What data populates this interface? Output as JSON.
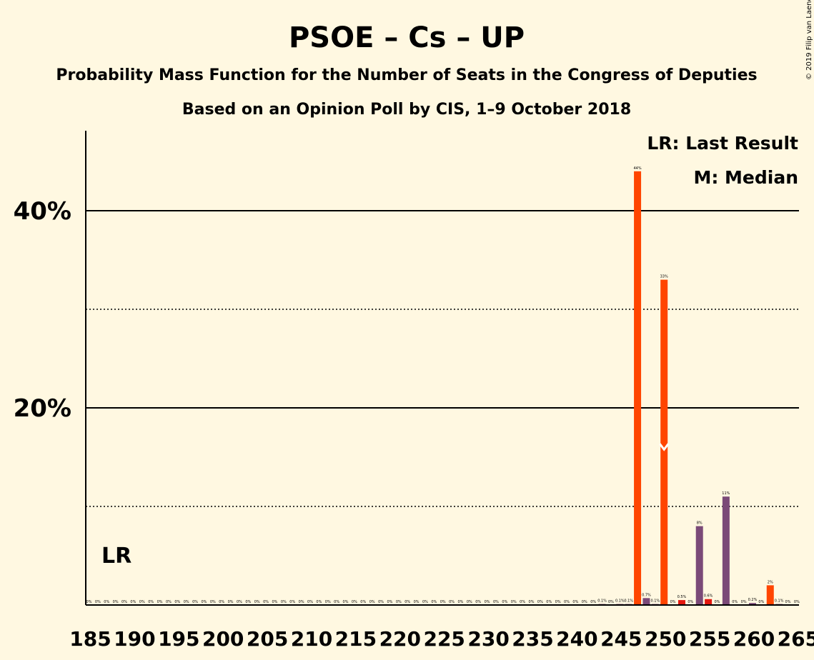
{
  "chart_data": {
    "type": "bar",
    "title": "PSOE – Cs – UP",
    "subtitle": "Probability Mass Function for the Number of Seats in the Congress of Deputies",
    "subtitle2": "Based on an Opinion Poll by CIS, 1–9 October 2018",
    "copyright": "© 2019 Filip van Laenen",
    "legend": {
      "last_result": "LR: Last Result",
      "median": "M: Median",
      "placement": "top-right"
    },
    "last_result_label": "LR",
    "last_result_seat": 185,
    "median_seat": 250,
    "xlim": [
      185,
      266
    ],
    "ylim": [
      0,
      48
    ],
    "yticks": [
      {
        "value": 20,
        "label": "20%"
      },
      {
        "value": 40,
        "label": "40%"
      }
    ],
    "dotted_gridlines": [
      10,
      30
    ],
    "x_tick_labels": [
      "185",
      "190",
      "195",
      "200",
      "205",
      "210",
      "215",
      "220",
      "225",
      "230",
      "235",
      "240",
      "245",
      "250",
      "255",
      "260",
      "265"
    ],
    "x_tick_values": [
      185,
      190,
      195,
      200,
      205,
      210,
      215,
      220,
      225,
      230,
      235,
      240,
      245,
      250,
      255,
      260,
      265
    ],
    "colors": {
      "background": "#FFF8E1",
      "highlight": "#FF4500",
      "normal": "#7B4A78",
      "red": "#E3180F",
      "median_marker": "#FFFFFF",
      "text": "#1a0a06"
    },
    "bars": [
      {
        "x": 185,
        "value": 0,
        "label": "0%",
        "color": "normal"
      },
      {
        "x": 186,
        "value": 0,
        "label": "0%",
        "color": "normal"
      },
      {
        "x": 187,
        "value": 0,
        "label": "0%",
        "color": "normal"
      },
      {
        "x": 188,
        "value": 0,
        "label": "0%",
        "color": "normal"
      },
      {
        "x": 189,
        "value": 0,
        "label": "0%",
        "color": "normal"
      },
      {
        "x": 190,
        "value": 0,
        "label": "0%",
        "color": "normal"
      },
      {
        "x": 191,
        "value": 0,
        "label": "0%",
        "color": "normal"
      },
      {
        "x": 192,
        "value": 0,
        "label": "0%",
        "color": "normal"
      },
      {
        "x": 193,
        "value": 0,
        "label": "0%",
        "color": "normal"
      },
      {
        "x": 194,
        "value": 0,
        "label": "0%",
        "color": "normal"
      },
      {
        "x": 195,
        "value": 0,
        "label": "0%",
        "color": "normal"
      },
      {
        "x": 196,
        "value": 0,
        "label": "0%",
        "color": "normal"
      },
      {
        "x": 197,
        "value": 0,
        "label": "0%",
        "color": "normal"
      },
      {
        "x": 198,
        "value": 0,
        "label": "0%",
        "color": "normal"
      },
      {
        "x": 199,
        "value": 0,
        "label": "0%",
        "color": "normal"
      },
      {
        "x": 200,
        "value": 0,
        "label": "0%",
        "color": "normal"
      },
      {
        "x": 201,
        "value": 0,
        "label": "0%",
        "color": "normal"
      },
      {
        "x": 202,
        "value": 0,
        "label": "0%",
        "color": "normal"
      },
      {
        "x": 203,
        "value": 0,
        "label": "0%",
        "color": "normal"
      },
      {
        "x": 204,
        "value": 0,
        "label": "0%",
        "color": "normal"
      },
      {
        "x": 205,
        "value": 0,
        "label": "0%",
        "color": "normal"
      },
      {
        "x": 206,
        "value": 0,
        "label": "0%",
        "color": "normal"
      },
      {
        "x": 207,
        "value": 0,
        "label": "0%",
        "color": "normal"
      },
      {
        "x": 208,
        "value": 0,
        "label": "0%",
        "color": "normal"
      },
      {
        "x": 209,
        "value": 0,
        "label": "0%",
        "color": "normal"
      },
      {
        "x": 210,
        "value": 0,
        "label": "0%",
        "color": "normal"
      },
      {
        "x": 211,
        "value": 0,
        "label": "0%",
        "color": "normal"
      },
      {
        "x": 212,
        "value": 0,
        "label": "0%",
        "color": "normal"
      },
      {
        "x": 213,
        "value": 0,
        "label": "0%",
        "color": "normal"
      },
      {
        "x": 214,
        "value": 0,
        "label": "0%",
        "color": "normal"
      },
      {
        "x": 215,
        "value": 0,
        "label": "0%",
        "color": "normal"
      },
      {
        "x": 216,
        "value": 0,
        "label": "0%",
        "color": "normal"
      },
      {
        "x": 217,
        "value": 0,
        "label": "0%",
        "color": "normal"
      },
      {
        "x": 218,
        "value": 0,
        "label": "0%",
        "color": "normal"
      },
      {
        "x": 219,
        "value": 0,
        "label": "0%",
        "color": "normal"
      },
      {
        "x": 220,
        "value": 0,
        "label": "0%",
        "color": "normal"
      },
      {
        "x": 221,
        "value": 0,
        "label": "0%",
        "color": "normal"
      },
      {
        "x": 222,
        "value": 0,
        "label": "0%",
        "color": "normal"
      },
      {
        "x": 223,
        "value": 0,
        "label": "0%",
        "color": "normal"
      },
      {
        "x": 224,
        "value": 0,
        "label": "0%",
        "color": "normal"
      },
      {
        "x": 225,
        "value": 0,
        "label": "0%",
        "color": "normal"
      },
      {
        "x": 226,
        "value": 0,
        "label": "0%",
        "color": "normal"
      },
      {
        "x": 227,
        "value": 0,
        "label": "0%",
        "color": "normal"
      },
      {
        "x": 228,
        "value": 0,
        "label": "0%",
        "color": "normal"
      },
      {
        "x": 229,
        "value": 0,
        "label": "0%",
        "color": "normal"
      },
      {
        "x": 230,
        "value": 0,
        "label": "0%",
        "color": "normal"
      },
      {
        "x": 231,
        "value": 0,
        "label": "0%",
        "color": "normal"
      },
      {
        "x": 232,
        "value": 0,
        "label": "0%",
        "color": "normal"
      },
      {
        "x": 233,
        "value": 0,
        "label": "0%",
        "color": "normal"
      },
      {
        "x": 234,
        "value": 0,
        "label": "0%",
        "color": "normal"
      },
      {
        "x": 235,
        "value": 0,
        "label": "0%",
        "color": "normal"
      },
      {
        "x": 236,
        "value": 0,
        "label": "0%",
        "color": "normal"
      },
      {
        "x": 237,
        "value": 0,
        "label": "0%",
        "color": "normal"
      },
      {
        "x": 238,
        "value": 0,
        "label": "0%",
        "color": "normal"
      },
      {
        "x": 239,
        "value": 0,
        "label": "0%",
        "color": "normal"
      },
      {
        "x": 240,
        "value": 0,
        "label": "0%",
        "color": "normal"
      },
      {
        "x": 241,
        "value": 0,
        "label": "0%",
        "color": "normal"
      },
      {
        "x": 242,
        "value": 0,
        "label": "0%",
        "color": "normal"
      },
      {
        "x": 243,
        "value": 0.1,
        "label": "0.1%",
        "color": "normal"
      },
      {
        "x": 244,
        "value": 0,
        "label": "0%",
        "color": "normal"
      },
      {
        "x": 245,
        "value": 0.1,
        "label": "0.1%",
        "color": "normal"
      },
      {
        "x": 246,
        "value": 0.1,
        "label": "0.1%",
        "color": "normal"
      },
      {
        "x": 247,
        "value": 44,
        "label": "44%",
        "color": "highlight"
      },
      {
        "x": 248,
        "value": 0.7,
        "label": "0.7%",
        "color": "normal"
      },
      {
        "x": 249,
        "value": 0.1,
        "label": "0.1%",
        "color": "normal"
      },
      {
        "x": 250,
        "value": 33,
        "label": "33%",
        "color": "highlight"
      },
      {
        "x": 251,
        "value": 0,
        "label": "0%",
        "color": "normal"
      },
      {
        "x": 252,
        "value": 0.5,
        "label": "0.5%",
        "color": "red"
      },
      {
        "x": 253,
        "value": 0,
        "label": "0%",
        "color": "normal"
      },
      {
        "x": 254,
        "value": 8,
        "label": "8%",
        "color": "normal"
      },
      {
        "x": 255,
        "value": 0.6,
        "label": "0.6%",
        "color": "red"
      },
      {
        "x": 256,
        "value": 0,
        "label": "0%",
        "color": "normal"
      },
      {
        "x": 257,
        "value": 11,
        "label": "11%",
        "color": "normal"
      },
      {
        "x": 258,
        "value": 0,
        "label": "0%",
        "color": "normal"
      },
      {
        "x": 259,
        "value": 0,
        "label": "0%",
        "color": "normal"
      },
      {
        "x": 260,
        "value": 0.2,
        "label": "0.2%",
        "color": "normal"
      },
      {
        "x": 261,
        "value": 0,
        "label": "0%",
        "color": "normal"
      },
      {
        "x": 262,
        "value": 2,
        "label": "2%",
        "color": "highlight"
      },
      {
        "x": 263,
        "value": 0.1,
        "label": "0.1%",
        "color": "normal"
      },
      {
        "x": 264,
        "value": 0,
        "label": "0%",
        "color": "normal"
      },
      {
        "x": 265,
        "value": 0,
        "label": "0%",
        "color": "normal"
      }
    ]
  }
}
